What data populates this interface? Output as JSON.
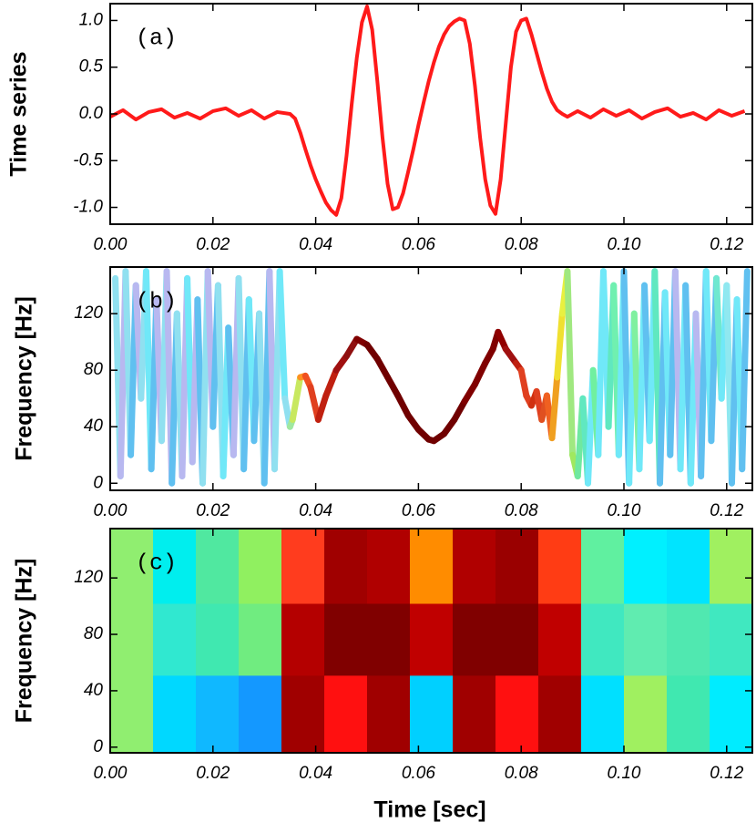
{
  "chart_data": [
    {
      "type": "line",
      "label": "(a)",
      "ylabel": "Time series",
      "color": "#ff1a1a",
      "xlim": [
        0,
        0.125
      ],
      "ylim": [
        -1.18,
        1.18
      ],
      "xticks": [
        {
          "value": 0,
          "label": "0.00"
        },
        0.02,
        0.04,
        0.06,
        0.08,
        {
          "value": 0.1,
          "label": "0.10"
        },
        0.12
      ],
      "yticks": [
        {
          "value": 1,
          "label": "1.0"
        },
        0.5,
        {
          "value": 0,
          "label": "0.0"
        },
        -0.5,
        {
          "value": -1,
          "label": "-1.0"
        }
      ],
      "x": [
        0,
        0.0025,
        0.005,
        0.0075,
        0.01,
        0.0125,
        0.015,
        0.0175,
        0.02,
        0.0225,
        0.025,
        0.0275,
        0.03,
        0.0325,
        0.035,
        0.036,
        0.037,
        0.038,
        0.039,
        0.04,
        0.041,
        0.042,
        0.043,
        0.044,
        0.045,
        0.046,
        0.047,
        0.048,
        0.049,
        0.05,
        0.051,
        0.052,
        0.053,
        0.054,
        0.055,
        0.056,
        0.057,
        0.058,
        0.059,
        0.06,
        0.061,
        0.062,
        0.063,
        0.064,
        0.065,
        0.066,
        0.067,
        0.068,
        0.069,
        0.07,
        0.071,
        0.072,
        0.073,
        0.074,
        0.075,
        0.076,
        0.077,
        0.078,
        0.079,
        0.08,
        0.081,
        0.082,
        0.083,
        0.084,
        0.085,
        0.086,
        0.087,
        0.088,
        0.089,
        0.091,
        0.0935,
        0.096,
        0.0985,
        0.101,
        0.1035,
        0.106,
        0.1085,
        0.111,
        0.1135,
        0.116,
        0.1185,
        0.121,
        0.1235
      ],
      "values": [
        -0.03,
        0.04,
        -0.06,
        0.02,
        0.05,
        -0.04,
        0.01,
        -0.05,
        0.03,
        0.06,
        -0.02,
        0.04,
        -0.05,
        0.02,
        0.0,
        -0.05,
        -0.2,
        -0.38,
        -0.55,
        -0.7,
        -0.83,
        -0.95,
        -1.03,
        -1.08,
        -0.9,
        -0.45,
        0.1,
        0.6,
        0.98,
        1.15,
        0.9,
        0.35,
        -0.25,
        -0.75,
        -1.02,
        -1.0,
        -0.85,
        -0.62,
        -0.38,
        -0.12,
        0.12,
        0.35,
        0.55,
        0.72,
        0.85,
        0.94,
        0.99,
        1.02,
        1.0,
        0.75,
        0.3,
        -0.25,
        -0.7,
        -0.98,
        -1.07,
        -0.7,
        -0.1,
        0.5,
        0.88,
        1.0,
        1.02,
        0.85,
        0.65,
        0.45,
        0.27,
        0.13,
        0.04,
        0.0,
        -0.03,
        0.03,
        -0.04,
        0.05,
        -0.02,
        0.04,
        -0.05,
        0.02,
        0.06,
        -0.03,
        0.01,
        -0.06,
        0.04,
        -0.02,
        0.03
      ]
    },
    {
      "type": "colorline",
      "label": "(b)",
      "ylabel": "Frequency [Hz]",
      "xlim": [
        0,
        0.125
      ],
      "ylim": [
        -5,
        153
      ],
      "xticks": [
        {
          "value": 0,
          "label": "0.00"
        },
        0.02,
        0.04,
        0.06,
        0.08,
        {
          "value": 0.1,
          "label": "0.10"
        },
        0.12
      ],
      "yticks": [
        0,
        40,
        80,
        120
      ],
      "x": [
        0.001,
        0.002,
        0.003,
        0.004,
        0.005,
        0.006,
        0.007,
        0.008,
        0.009,
        0.01,
        0.011,
        0.012,
        0.013,
        0.014,
        0.015,
        0.016,
        0.017,
        0.018,
        0.019,
        0.02,
        0.021,
        0.022,
        0.023,
        0.024,
        0.025,
        0.026,
        0.027,
        0.028,
        0.029,
        0.03,
        0.031,
        0.032,
        0.033,
        0.034,
        0.035,
        0.0355,
        0.037,
        0.038,
        0.039,
        0.0405,
        0.042,
        0.044,
        0.046,
        0.048,
        0.05,
        0.052,
        0.054,
        0.056,
        0.058,
        0.06,
        0.062,
        0.063,
        0.065,
        0.067,
        0.069,
        0.071,
        0.073,
        0.0745,
        0.0755,
        0.077,
        0.079,
        0.08,
        0.081,
        0.082,
        0.083,
        0.084,
        0.085,
        0.086,
        0.087,
        0.088,
        0.089,
        0.09,
        0.091,
        0.092,
        0.093,
        0.094,
        0.095,
        0.096,
        0.097,
        0.098,
        0.099,
        0.1,
        0.101,
        0.102,
        0.103,
        0.104,
        0.105,
        0.106,
        0.107,
        0.108,
        0.109,
        0.11,
        0.111,
        0.112,
        0.113,
        0.114,
        0.115,
        0.116,
        0.117,
        0.118,
        0.119,
        0.12,
        0.121,
        0.122,
        0.123,
        0.124
      ],
      "values": [
        145,
        5,
        150,
        20,
        140,
        60,
        150,
        10,
        130,
        30,
        150,
        0,
        120,
        5,
        145,
        15,
        130,
        0,
        150,
        40,
        140,
        5,
        110,
        20,
        145,
        10,
        130,
        30,
        120,
        0,
        150,
        10,
        150,
        60,
        40,
        45,
        75,
        76,
        68,
        45,
        62,
        80,
        90,
        102,
        98,
        88,
        75,
        62,
        48,
        38,
        31,
        30,
        35,
        45,
        58,
        70,
        85,
        95,
        107,
        95,
        85,
        80,
        62,
        55,
        65,
        45,
        62,
        32,
        75,
        120,
        150,
        20,
        5,
        60,
        0,
        80,
        20,
        150,
        40,
        140,
        20,
        150,
        0,
        120,
        10,
        140,
        30,
        150,
        0,
        135,
        20,
        150,
        10,
        140,
        0,
        120,
        5,
        150,
        30,
        145,
        60,
        140,
        0,
        130,
        10,
        150
      ],
      "colors": [
        "#90e0f0",
        "#b8b8f0",
        "#90e0f0",
        "#60c0f0",
        "#b8b8f0",
        "#90e0f0",
        "#70e8f8",
        "#60c0f0",
        "#b8b8f0",
        "#90e0f0",
        "#b8b8f0",
        "#60c0f0",
        "#90e0f0",
        "#b8b8f0",
        "#70e8f8",
        "#b8b8f0",
        "#60c0f0",
        "#90e0f0",
        "#b8b8f0",
        "#60c0f0",
        "#90e0f0",
        "#70e8f8",
        "#60c0f0",
        "#b8b8f0",
        "#90e0f0",
        "#60c0f0",
        "#70e8f8",
        "#60c0f0",
        "#90e0f0",
        "#60c0f0",
        "#b8b8f0",
        "#90e0f0",
        "#70e8f8",
        "#90e0f0",
        "#a0e8a0",
        "#c8e860",
        "#ff9020",
        "#f05020",
        "#e04020",
        "#c02010",
        "#c02010",
        "#a01010",
        "#901010",
        "#800000",
        "#700000",
        "#700000",
        "#700000",
        "#700000",
        "#700000",
        "#700000",
        "#700000",
        "#700000",
        "#700000",
        "#700000",
        "#800000",
        "#800000",
        "#800000",
        "#800000",
        "#900000",
        "#a01010",
        "#c02010",
        "#e04020",
        "#e04020",
        "#d03010",
        "#e04020",
        "#e05020",
        "#f06020",
        "#f0a020",
        "#f0e030",
        "#e8f040",
        "#a0e880",
        "#a0e860",
        "#70e8a0",
        "#60e8c0",
        "#70e8f8",
        "#70f0a0",
        "#70e8f8",
        "#70e8f8",
        "#60e8c0",
        "#70f0b0",
        "#70e8f8",
        "#60c0f0",
        "#70e8f8",
        "#80f0a0",
        "#70e8f8",
        "#60c0f0",
        "#70e8f8",
        "#60e8c0",
        "#60c0f0",
        "#70e8f8",
        "#60c0f0",
        "#b8b8f0",
        "#70e8f8",
        "#60c0f0",
        "#70e8f8",
        "#b8b8f0",
        "#60c0f0",
        "#70e8f8",
        "#60c0f0",
        "#70e8d0",
        "#70e8f8",
        "#90e8f0",
        "#60c0f0",
        "#70e8f8",
        "#60c0f0",
        "#70e8f8"
      ]
    },
    {
      "type": "heatmap",
      "label": "(c)",
      "ylabel": "Frequency [Hz]",
      "xlabel": "Time [sec]",
      "xlim": [
        0,
        0.125
      ],
      "ylim": [
        -4,
        155
      ],
      "xticks": [
        {
          "value": 0,
          "label": "0.00"
        },
        0.02,
        0.04,
        0.06,
        0.08,
        {
          "value": 0.1,
          "label": "0.10"
        },
        0.12
      ],
      "yticks": [
        0,
        40,
        80,
        120
      ],
      "x_edges": [
        0,
        0.00833,
        0.01667,
        0.025,
        0.03333,
        0.04167,
        0.05,
        0.05833,
        0.06667,
        0.075,
        0.08333,
        0.09167,
        0.1,
        0.10833,
        0.11667,
        0.125
      ],
      "y_edges": [
        -4,
        51,
        102,
        155
      ],
      "colors": [
        [
          "#90ee70",
          "#00d8ff",
          "#10b8ff",
          "#1498ff",
          "#a00000",
          "#ff1010",
          "#a00000",
          "#00d0ff",
          "#a00000",
          "#ff1010",
          "#a00000",
          "#00e0ff",
          "#a0f060",
          "#40e8b0",
          "#00ecff"
        ],
        [
          "#90ee70",
          "#30e8d0",
          "#40e8b0",
          "#70ec80",
          "#b40000",
          "#800000",
          "#800000",
          "#c00000",
          "#800000",
          "#800000",
          "#c00000",
          "#40e8c0",
          "#60ecb0",
          "#50e8b0",
          "#40e8c0"
        ],
        [
          "#90ee70",
          "#00eeee",
          "#50e8a0",
          "#90f060",
          "#ff3c1e",
          "#a00000",
          "#b00000",
          "#ff8c00",
          "#b00000",
          "#9a0000",
          "#ff3c14",
          "#60f0a0",
          "#00f0ff",
          "#00e4ff",
          "#a0f060"
        ]
      ]
    }
  ]
}
